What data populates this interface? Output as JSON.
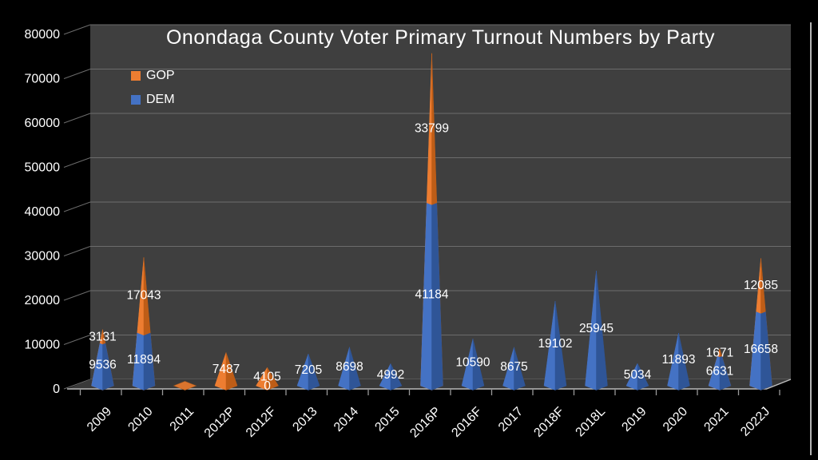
{
  "window": {
    "background": "#000000"
  },
  "chart_data": {
    "type": "area",
    "variant": "3d-stacked-pyramid-spikes",
    "title": "Onondaga County Voter Primary Turnout Numbers by Party",
    "categories": [
      "2009",
      "2010",
      "2011",
      "2012P",
      "2012F",
      "2013",
      "2014",
      "2015",
      "2016P",
      "2016F",
      "2017",
      "2018F",
      "2018L",
      "2019",
      "2020",
      "2021",
      "2022J"
    ],
    "series": [
      {
        "name": "DEM",
        "stack_order": 0,
        "color": "#4472C4",
        "color_dark": "#2F5597",
        "values": [
          9536,
          11894,
          0,
          0,
          0,
          7205,
          8698,
          4992,
          41184,
          10590,
          8675,
          19102,
          25945,
          5034,
          11893,
          6631,
          16658
        ],
        "data_labels": [
          "9536",
          "11894",
          "",
          "",
          "0",
          "7205",
          "8698",
          "4992",
          "41184",
          "10590",
          "8675",
          "19102",
          "25945",
          "5034",
          "11893",
          "6631",
          "16658"
        ]
      },
      {
        "name": "GOP",
        "stack_order": 1,
        "color": "#ED7D31",
        "color_dark": "#BE5D17",
        "values": [
          3131,
          17043,
          0,
          7487,
          4105,
          0,
          0,
          0,
          33799,
          0,
          0,
          0,
          0,
          0,
          0,
          1671,
          12085
        ],
        "data_labels": [
          "3131",
          "17043",
          "",
          "7487",
          "4105",
          "",
          "",
          "",
          "33799",
          "",
          "",
          "",
          "",
          "",
          "",
          "1671",
          "12085"
        ]
      }
    ],
    "flat_base_marker": {
      "category": "2011",
      "series": "GOP",
      "color": "#D9742E"
    },
    "y_axis": {
      "min": 0,
      "max": 80000,
      "step": 10000,
      "tick_labels": [
        "0",
        "10000",
        "20000",
        "30000",
        "40000",
        "50000",
        "60000",
        "70000",
        "80000"
      ]
    },
    "x_axis": {
      "label_rotation_deg": -45
    },
    "legend": {
      "position": "top-left",
      "entries": [
        {
          "label": "GOP",
          "color": "#ED7D31"
        },
        {
          "label": "DEM",
          "color": "#4472C4"
        }
      ]
    },
    "grid": true,
    "colors": {
      "plot_wall": "#3F3F3F",
      "plot_floor": "#393939",
      "gridline": "#6C6C6C",
      "floor_edge": "#BDBDBD",
      "tick": "#9A9A9A",
      "label_text": "#FFFFFF"
    }
  }
}
